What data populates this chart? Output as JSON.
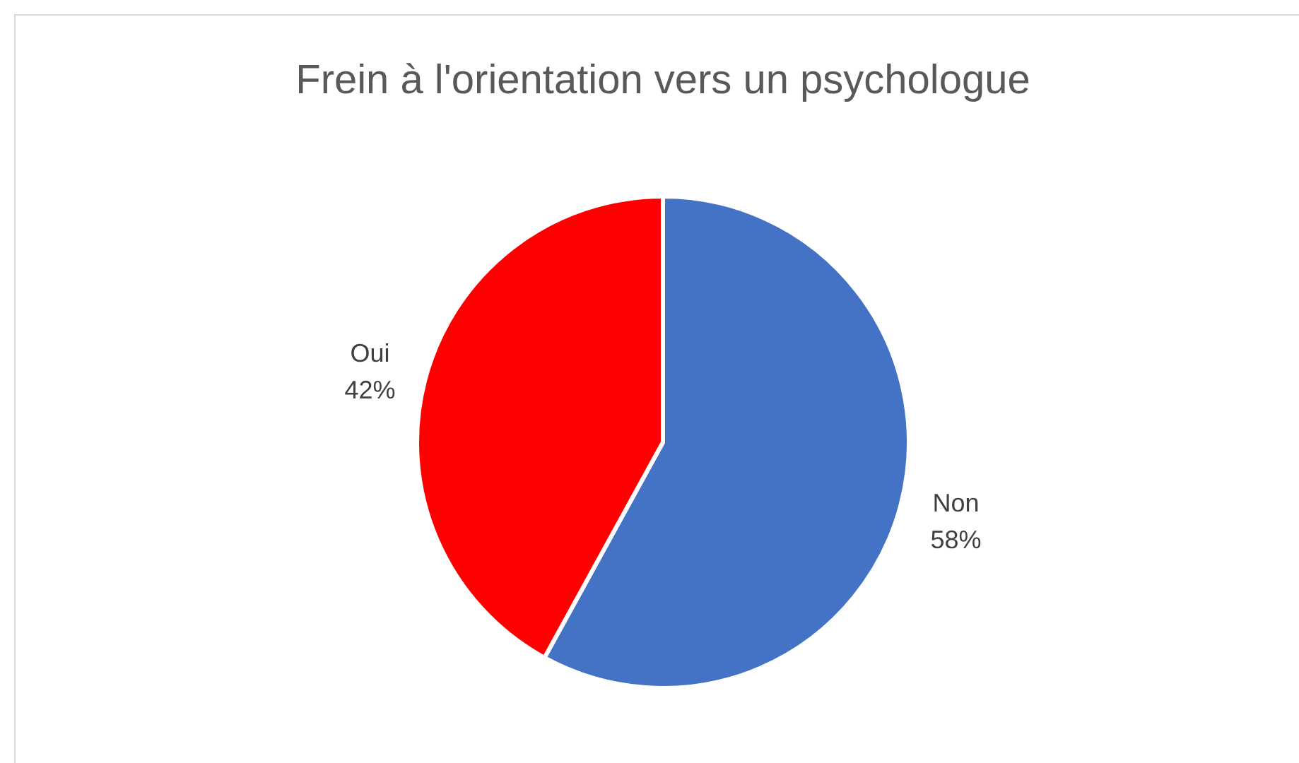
{
  "chart_data": {
    "type": "pie",
    "title": "Frein à l'orientation vers un psychologue",
    "categories": [
      "Non",
      "Oui"
    ],
    "values": [
      58,
      42
    ],
    "colors": [
      "#4472c4",
      "#ff0000"
    ],
    "value_labels": [
      "58%",
      "42%"
    ],
    "legend": false
  }
}
